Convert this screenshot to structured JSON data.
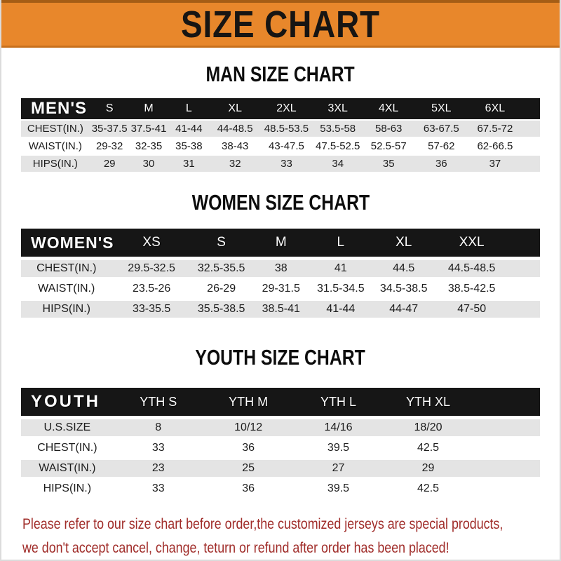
{
  "banner": {
    "title": "SIZE CHART"
  },
  "sections": [
    {
      "heading": "MAN SIZE CHART",
      "table": {
        "header_label": "MEN'S",
        "columns": [
          "S",
          "M",
          "L",
          "XL",
          "2XL",
          "3XL",
          "4XL",
          "5XL",
          "6XL"
        ],
        "rows": [
          {
            "label": "CHEST(IN.)",
            "values": [
              "35-37.5",
              "37.5-41",
              "41-44",
              "44-48.5",
              "48.5-53.5",
              "53.5-58",
              "58-63",
              "63-67.5",
              "67.5-72"
            ]
          },
          {
            "label": "WAIST(IN.)",
            "values": [
              "29-32",
              "32-35",
              "35-38",
              "38-43",
              "43-47.5",
              "47.5-52.5",
              "52.5-57",
              "57-62",
              "62-66.5"
            ]
          },
          {
            "label": "HIPS(IN.)",
            "values": [
              "29",
              "30",
              "31",
              "32",
              "33",
              "34",
              "35",
              "36",
              "37"
            ]
          }
        ]
      }
    },
    {
      "heading": "WOMEN SIZE CHART",
      "table": {
        "header_label": "WOMEN'S",
        "columns": [
          "XS",
          "S",
          "M",
          "L",
          "XL",
          "XXL"
        ],
        "rows": [
          {
            "label": "CHEST(IN.)",
            "values": [
              "29.5-32.5",
              "32.5-35.5",
              "38",
              "41",
              "44.5",
              "44.5-48.5"
            ]
          },
          {
            "label": "WAIST(IN.)",
            "values": [
              "23.5-26",
              "26-29",
              "29-31.5",
              "31.5-34.5",
              "34.5-38.5",
              "38.5-42.5"
            ]
          },
          {
            "label": "HIPS(IN.)",
            "values": [
              "33-35.5",
              "35.5-38.5",
              "38.5-41",
              "41-44",
              "44-47",
              "47-50"
            ]
          }
        ]
      }
    },
    {
      "heading": "YOUTH SIZE CHART",
      "table": {
        "header_label": "YOUTH",
        "columns": [
          "YTH S",
          "YTH M",
          "YTH L",
          "YTH XL"
        ],
        "rows": [
          {
            "label": "U.S.SIZE",
            "values": [
              "8",
              "10/12",
              "14/16",
              "18/20"
            ]
          },
          {
            "label": "CHEST(IN.)",
            "values": [
              "33",
              "36",
              "39.5",
              "42.5"
            ]
          },
          {
            "label": "WAIST(IN.)",
            "values": [
              "23",
              "25",
              "27",
              "29"
            ]
          },
          {
            "label": "HIPS(IN.)",
            "values": [
              "33",
              "36",
              "39.5",
              "42.5"
            ]
          }
        ]
      }
    }
  ],
  "footer": {
    "lines": [
      "Please refer to our size chart before order,the customized jerseys are special products,",
      "we don't accept cancel, change, teturn or refund after order has been placed!"
    ]
  },
  "colors": {
    "banner_bg": "#e8872b",
    "header_bg": "#161616",
    "row_alt_bg": "#e4e4e4",
    "footer_text": "#a02c29"
  }
}
